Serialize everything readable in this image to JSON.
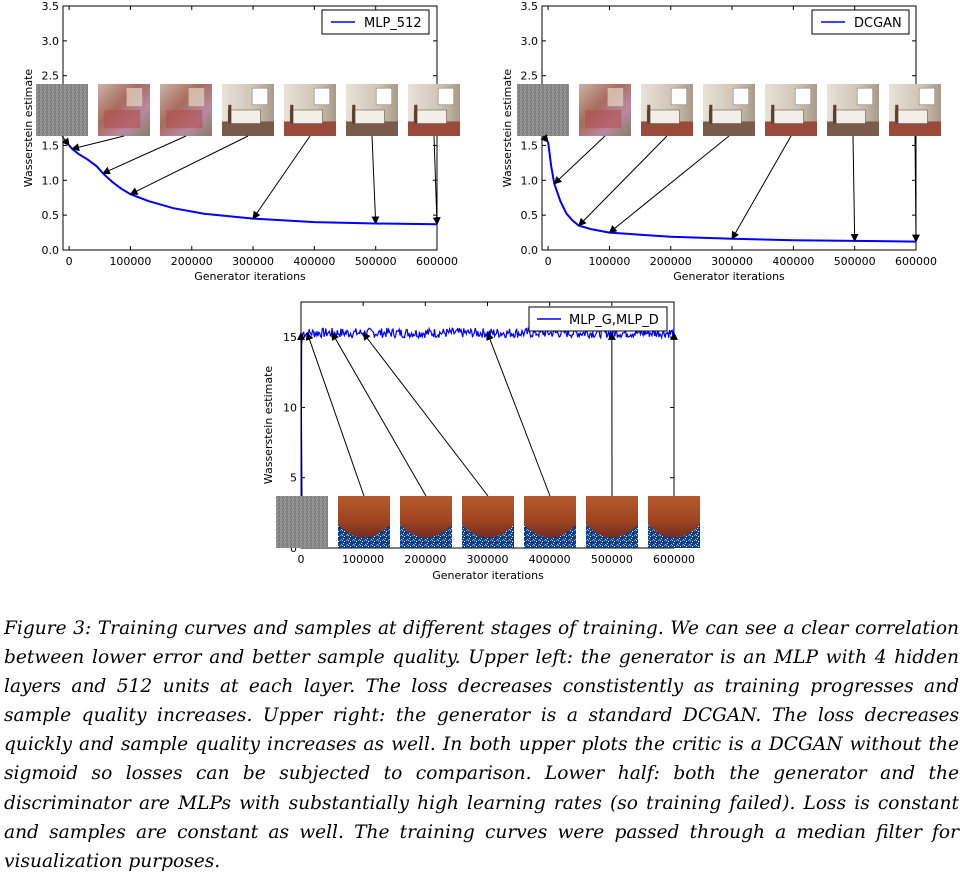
{
  "figure": {
    "caption": "Figure 3: Training curves and samples at different stages of training. We can see a clear correlation between lower error and better sample quality. Upper left: the generator is an MLP with 4 hidden layers and 512 units at each layer. The loss decreases constistently as training progresses and sample quality increases. Upper right: the generator is a standard DCGAN. The loss decreases quickly and sample quality increases as well. In both upper plots the critic is a DCGAN without the sigmoid so losses can be subjected to comparison. Lower half: both the generator and the discriminator are MLPs with substantially high learning rates (so training failed). Loss is constant and samples are constant as well. The training curves were passed through a median filter for visualization purposes."
  },
  "colors": {
    "line": "#0000ff",
    "axis": "#000000",
    "arrow": "#000000"
  },
  "chart_data": [
    {
      "type": "line",
      "panel": "upper-left",
      "xlabel": "Generator iterations",
      "ylabel": "Wasserstein estimate",
      "xlim": [
        -10000,
        600000
      ],
      "ylim": [
        0,
        3.5
      ],
      "xticks": [
        0,
        100000,
        200000,
        300000,
        400000,
        500000,
        600000
      ],
      "yticks": [
        0.0,
        0.5,
        1.0,
        1.5,
        2.0,
        2.5,
        3.0,
        3.5
      ],
      "legend": "top-right",
      "grid": false,
      "series": [
        {
          "name": "MLP_512",
          "x": [
            0,
            5000,
            15000,
            30000,
            45000,
            55000,
            70000,
            85000,
            100000,
            130000,
            170000,
            220000,
            300000,
            400000,
            500000,
            600000
          ],
          "y": [
            1.5,
            1.45,
            1.38,
            1.3,
            1.2,
            1.1,
            0.98,
            0.88,
            0.8,
            0.7,
            0.6,
            0.52,
            0.45,
            0.4,
            0.38,
            0.37
          ]
        }
      ],
      "sample_iterations": [
        0,
        5000,
        55000,
        100000,
        300000,
        500000,
        600000
      ],
      "sample_style": [
        "noise",
        "rgb-blurry",
        "rgb-blurry",
        "rgb-room",
        "rgb-room",
        "rgb-room",
        "rgb-room"
      ]
    },
    {
      "type": "line",
      "panel": "upper-right",
      "xlabel": "Generator iterations",
      "ylabel": "Wasserstein estimate",
      "xlim": [
        -10000,
        600000
      ],
      "ylim": [
        0,
        3.5
      ],
      "xticks": [
        0,
        100000,
        200000,
        300000,
        400000,
        500000,
        600000
      ],
      "yticks": [
        0.0,
        0.5,
        1.0,
        1.5,
        2.0,
        2.5,
        3.0,
        3.5
      ],
      "legend": "top-right",
      "grid": false,
      "series": [
        {
          "name": "DCGAN",
          "x": [
            0,
            5000,
            10000,
            20000,
            30000,
            40000,
            50000,
            70000,
            100000,
            150000,
            200000,
            300000,
            400000,
            500000,
            600000
          ],
          "y": [
            1.55,
            1.2,
            0.95,
            0.7,
            0.52,
            0.42,
            0.35,
            0.3,
            0.25,
            0.22,
            0.19,
            0.16,
            0.14,
            0.13,
            0.12
          ]
        }
      ],
      "sample_iterations": [
        0,
        10000,
        50000,
        100000,
        300000,
        500000,
        600000
      ],
      "sample_style": [
        "noise",
        "rgb-blurry",
        "rgb-room",
        "rgb-room",
        "rgb-room",
        "rgb-room",
        "rgb-room"
      ]
    },
    {
      "type": "line",
      "panel": "lower",
      "xlabel": "Generator iterations",
      "ylabel": "Wasserstein estimate",
      "xlim": [
        0,
        600000
      ],
      "ylim": [
        0,
        17.5
      ],
      "xticks": [
        0,
        100000,
        200000,
        300000,
        400000,
        500000,
        600000
      ],
      "xtick_labels": [
        "0",
        "100000",
        "200000",
        "300000",
        "400000",
        "500000",
        "600000"
      ],
      "yticks": [
        0,
        5,
        10,
        15
      ],
      "ytick_labels": [
        "0",
        "5",
        "10",
        "15"
      ],
      "legend": "top-right",
      "grid": false,
      "series": [
        {
          "name": "MLP_G,MLP_D",
          "x": [
            0,
            1000,
            3000,
            600000
          ],
          "y": [
            0,
            14.5,
            15.3,
            15.3
          ],
          "noise_amplitude": 0.35
        }
      ],
      "sample_iterations": [
        0,
        10000,
        50000,
        100000,
        300000,
        500000,
        600000
      ],
      "sample_style": [
        "noise",
        "failed",
        "failed",
        "failed",
        "failed",
        "failed",
        "failed"
      ]
    }
  ]
}
